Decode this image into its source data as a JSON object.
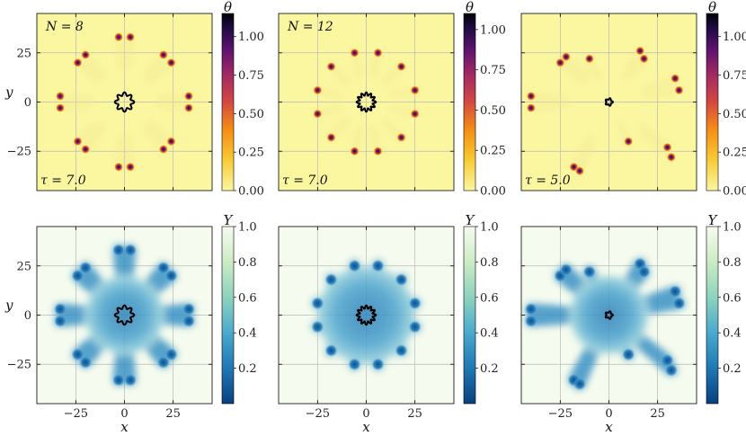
{
  "chart_data": [
    {
      "type": "heatmap",
      "field": "theta",
      "annotation_param": "N = 8",
      "annotation_time": "τ = 7.0",
      "xlabel": "",
      "ylabel": "y",
      "xlim": [
        -45,
        45
      ],
      "ylim": [
        -45,
        45
      ],
      "xticks": [],
      "yticks": [
        "−25",
        "0",
        "25"
      ],
      "colorbar": {
        "label": "θ",
        "range": [
          0,
          1.15
        ],
        "ticks": [
          "0.00",
          "0.25",
          "0.50",
          "0.75",
          "1.00"
        ],
        "colormap": "inferno_r"
      },
      "center_shape": "8-lobed star",
      "blobs": [
        [
          33,
          -3
        ],
        [
          33,
          3
        ],
        [
          24,
          -20
        ],
        [
          20,
          -24
        ],
        [
          3,
          -33
        ],
        [
          -3,
          -33
        ],
        [
          -20,
          -24
        ],
        [
          -24,
          -20
        ],
        [
          -33,
          -3
        ],
        [
          -33,
          3
        ],
        [
          -24,
          20
        ],
        [
          -20,
          24
        ],
        [
          -3,
          33
        ],
        [
          3,
          33
        ],
        [
          20,
          24
        ],
        [
          24,
          20
        ]
      ]
    },
    {
      "type": "heatmap",
      "field": "theta",
      "annotation_param": "N = 12",
      "annotation_time": "τ = 7.0",
      "xlabel": "",
      "ylabel": "",
      "xlim": [
        -45,
        45
      ],
      "ylim": [
        -45,
        45
      ],
      "xticks": [],
      "yticks": [],
      "colorbar": {
        "label": "θ",
        "range": [
          0,
          1.1
        ],
        "ticks": [
          "0.00",
          "0.25",
          "0.50",
          "0.75",
          "1.00"
        ],
        "colormap": "inferno_r"
      },
      "center_shape": "12-lobed star",
      "blobs": [
        [
          25,
          6
        ],
        [
          25,
          -6
        ],
        [
          18,
          18
        ],
        [
          18,
          -18
        ],
        [
          6,
          25
        ],
        [
          6,
          -25
        ],
        [
          -6,
          25
        ],
        [
          -6,
          -25
        ],
        [
          -18,
          18
        ],
        [
          -18,
          -18
        ],
        [
          -25,
          6
        ],
        [
          -25,
          -6
        ]
      ]
    },
    {
      "type": "heatmap",
      "field": "theta",
      "annotation_param": "",
      "annotation_time": "τ = 5.0",
      "xlabel": "",
      "ylabel": "",
      "xlim": [
        -45,
        45
      ],
      "ylim": [
        -45,
        45
      ],
      "xticks": [],
      "yticks": [],
      "colorbar": {
        "label": "θ",
        "range": [
          0,
          1.15
        ],
        "ticks": [
          "0.00",
          "0.25",
          "0.50",
          "0.75",
          "1.00"
        ],
        "colormap": "inferno_r"
      },
      "center_shape": "small star",
      "blobs": [
        [
          -40,
          3
        ],
        [
          -40,
          -3
        ],
        [
          -25,
          20
        ],
        [
          -22,
          23
        ],
        [
          -10,
          22
        ],
        [
          16,
          26
        ],
        [
          18,
          22
        ],
        [
          34,
          12
        ],
        [
          36,
          6
        ],
        [
          10,
          -20
        ],
        [
          30,
          -23
        ],
        [
          32,
          -28
        ],
        [
          -18,
          -33
        ],
        [
          -15,
          -35
        ]
      ]
    },
    {
      "type": "heatmap",
      "field": "Y",
      "annotation_param": "",
      "annotation_time": "",
      "xlabel": "x",
      "ylabel": "y",
      "xlim": [
        -45,
        45
      ],
      "ylim": [
        -45,
        45
      ],
      "xticks": [
        "−25",
        "0",
        "25"
      ],
      "yticks": [
        "−25",
        "0",
        "25"
      ],
      "colorbar": {
        "label": "Y",
        "range": [
          0,
          1
        ],
        "ticks": [
          "0.2",
          "0.4",
          "0.6",
          "0.8",
          "1.0"
        ],
        "colormap": "GnBu_r"
      },
      "center_shape": "8-lobed star",
      "blobs": [
        [
          33,
          -3
        ],
        [
          33,
          3
        ],
        [
          24,
          -20
        ],
        [
          20,
          -24
        ],
        [
          3,
          -33
        ],
        [
          -3,
          -33
        ],
        [
          -20,
          -24
        ],
        [
          -24,
          -20
        ],
        [
          -33,
          -3
        ],
        [
          -33,
          3
        ],
        [
          -24,
          20
        ],
        [
          -20,
          24
        ],
        [
          -3,
          33
        ],
        [
          3,
          33
        ],
        [
          20,
          24
        ],
        [
          24,
          20
        ]
      ]
    },
    {
      "type": "heatmap",
      "field": "Y",
      "annotation_param": "",
      "annotation_time": "",
      "xlabel": "x",
      "ylabel": "",
      "xlim": [
        -45,
        45
      ],
      "ylim": [
        -45,
        45
      ],
      "xticks": [
        "−25",
        "0",
        "25"
      ],
      "yticks": [],
      "colorbar": {
        "label": "Y",
        "range": [
          0,
          1
        ],
        "ticks": [
          "0.2",
          "0.4",
          "0.6",
          "0.8",
          "1.0"
        ],
        "colormap": "GnBu_r"
      },
      "center_shape": "12-lobed star",
      "blobs": [
        [
          25,
          6
        ],
        [
          25,
          -6
        ],
        [
          18,
          18
        ],
        [
          18,
          -18
        ],
        [
          6,
          25
        ],
        [
          6,
          -25
        ],
        [
          -6,
          25
        ],
        [
          -6,
          -25
        ],
        [
          -18,
          18
        ],
        [
          -18,
          -18
        ],
        [
          -25,
          6
        ],
        [
          -25,
          -6
        ]
      ]
    },
    {
      "type": "heatmap",
      "field": "Y",
      "annotation_param": "",
      "annotation_time": "",
      "xlabel": "x",
      "ylabel": "",
      "xlim": [
        -45,
        45
      ],
      "ylim": [
        -45,
        45
      ],
      "xticks": [
        "−25",
        "0",
        "25"
      ],
      "yticks": [],
      "colorbar": {
        "label": "Y",
        "range": [
          0,
          1
        ],
        "ticks": [
          "0.2",
          "0.4",
          "0.6",
          "0.8",
          "1.0"
        ],
        "colormap": "GnBu_r"
      },
      "center_shape": "small star",
      "blobs": [
        [
          -40,
          3
        ],
        [
          -40,
          -3
        ],
        [
          -25,
          20
        ],
        [
          -22,
          23
        ],
        [
          -10,
          22
        ],
        [
          16,
          26
        ],
        [
          18,
          22
        ],
        [
          34,
          12
        ],
        [
          36,
          6
        ],
        [
          10,
          -20
        ],
        [
          30,
          -23
        ],
        [
          32,
          -28
        ],
        [
          -18,
          -33
        ],
        [
          -15,
          -35
        ]
      ]
    }
  ]
}
